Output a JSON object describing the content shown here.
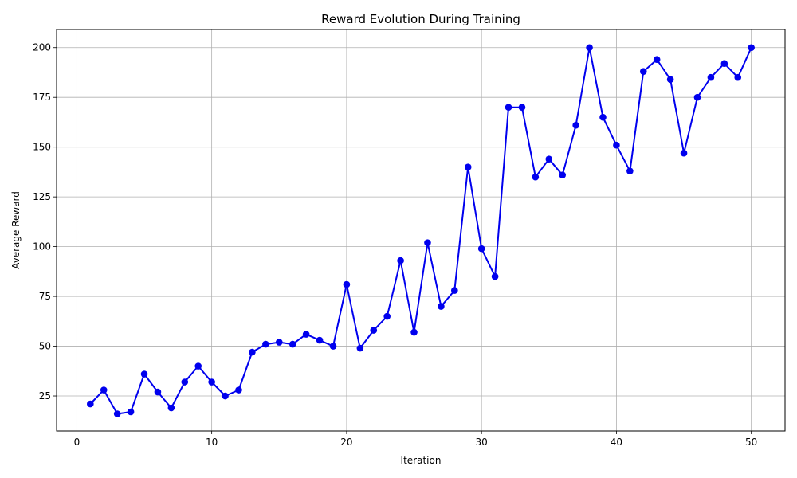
{
  "chart_data": {
    "type": "line",
    "title": "Reward Evolution During Training",
    "xlabel": "Iteration",
    "ylabel": "Average Reward",
    "xlim": [
      -1.5,
      52.5
    ],
    "ylim": [
      7.4,
      209.1
    ],
    "x_ticks": [
      0,
      10,
      20,
      30,
      40,
      50
    ],
    "y_ticks": [
      25,
      50,
      75,
      100,
      125,
      150,
      175,
      200
    ],
    "grid": true,
    "series_color": "#0000ee",
    "series": [
      {
        "x": [
          1,
          2,
          3,
          4,
          5,
          6,
          7,
          8,
          9,
          10,
          11,
          12,
          13,
          14,
          15,
          16,
          17,
          18,
          19,
          20,
          21,
          22,
          23,
          24,
          25,
          26,
          27,
          28,
          29,
          30,
          31,
          32,
          33,
          34,
          35,
          36,
          37,
          38,
          39,
          40,
          41,
          42,
          43,
          44,
          45,
          46,
          47,
          48,
          49,
          50
        ],
        "values": [
          21,
          28,
          16,
          17,
          36,
          27,
          19,
          32,
          40,
          32,
          25,
          28,
          47,
          51,
          52,
          51,
          56,
          53,
          50,
          81,
          49,
          58,
          65,
          93,
          57,
          102,
          70,
          78,
          140,
          99,
          85,
          170,
          170,
          135,
          144,
          136,
          161,
          200,
          165,
          151,
          138,
          188,
          194,
          184,
          147,
          175,
          185,
          192,
          185,
          200
        ]
      }
    ]
  }
}
